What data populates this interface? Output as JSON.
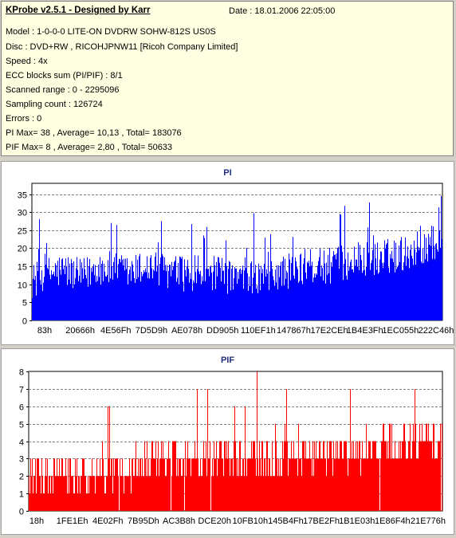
{
  "header": {
    "title": "KProbe v2.5.1 - Designed by Karr",
    "date": "Date : 18.01.2006 22:05:00",
    "lines": [
      "Model : 1-0-0-0 LITE-ON DVDRW SOHW-812S  US0S",
      "Disc : DVD+RW , RICOHJPNW11 [Ricoh Company Limited]",
      "Speed : 4x",
      "ECC blocks sum (PI/PIF) : 8/1",
      "Scanned range : 0 - 2295096",
      "Sampling count : 126724",
      "Errors : 0",
      "PI Max= 38 , Average= 10,13 , Total= 183076",
      "PIF Max= 8 , Average= 2,80 , Total= 50633"
    ]
  },
  "chart_data": [
    {
      "type": "area",
      "title": "PI",
      "color": "#0000ff",
      "ylim": [
        0,
        38
      ],
      "yticks": [
        0,
        5,
        10,
        15,
        20,
        25,
        30,
        35
      ],
      "grid": true,
      "xticks": [
        "83h",
        "20666h",
        "4E56Fh",
        "7D5D9h",
        "AE078h",
        "DD905h",
        "110EF1h",
        "147867h",
        "17E2CEh",
        "1B4E3Fh",
        "1EC055h",
        "222C46h"
      ],
      "profile": [
        [
          0,
          11
        ],
        [
          0.04,
          13
        ],
        [
          0.08,
          14
        ],
        [
          0.12,
          12
        ],
        [
          0.16,
          15
        ],
        [
          0.2,
          14
        ],
        [
          0.24,
          13
        ],
        [
          0.28,
          15
        ],
        [
          0.32,
          14
        ],
        [
          0.36,
          13
        ],
        [
          0.4,
          13
        ],
        [
          0.44,
          13
        ],
        [
          0.48,
          12
        ],
        [
          0.52,
          11
        ],
        [
          0.55,
          12
        ],
        [
          0.6,
          13
        ],
        [
          0.64,
          14
        ],
        [
          0.68,
          15
        ],
        [
          0.72,
          15
        ],
        [
          0.76,
          16
        ],
        [
          0.8,
          17
        ],
        [
          0.84,
          17
        ],
        [
          0.88,
          18
        ],
        [
          0.92,
          19
        ],
        [
          0.96,
          21
        ],
        [
          1,
          22
        ]
      ],
      "max": 38,
      "average": 10.13
    },
    {
      "type": "area",
      "title": "PIF",
      "color": "#ff0000",
      "ylim": [
        0,
        8
      ],
      "yticks": [
        0,
        1,
        2,
        3,
        4,
        5,
        6,
        7,
        8
      ],
      "grid": true,
      "xticks": [
        "18h",
        "1FE1Eh",
        "4E02Fh",
        "7B95Dh",
        "AC3B8h",
        "DCE20h",
        "10FB10h",
        "145B4Fh",
        "17BE2Fh",
        "1B1E03h",
        "1E86F4h",
        "21E776h"
      ],
      "profile": [
        [
          0,
          2
        ],
        [
          0.15,
          2
        ],
        [
          0.25,
          2.5
        ],
        [
          0.35,
          3
        ],
        [
          0.5,
          3
        ],
        [
          0.6,
          3
        ],
        [
          0.7,
          3.2
        ],
        [
          0.8,
          3.5
        ],
        [
          0.9,
          3.8
        ],
        [
          1,
          4
        ]
      ],
      "max": 8,
      "average": 2.8
    }
  ]
}
